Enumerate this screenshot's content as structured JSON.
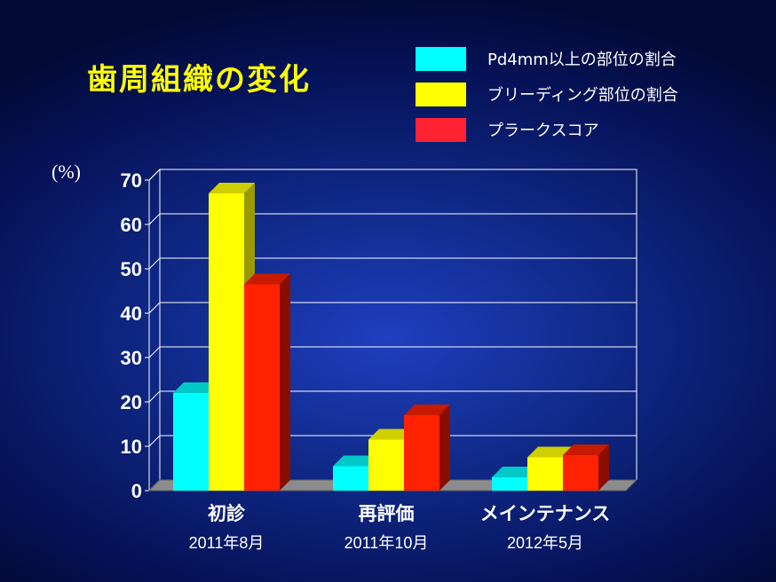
{
  "title": "歯周組織の変化",
  "chart_data": {
    "type": "bar",
    "y_unit": "(%)",
    "ylim": [
      0,
      70
    ],
    "yticks": [
      0,
      10,
      20,
      30,
      40,
      50,
      60,
      70
    ],
    "categories": [
      "初診",
      "再評価",
      "メインテナンス"
    ],
    "category_dates": [
      "2011年8月",
      "2011年10月",
      "2012年5月"
    ],
    "series": [
      {
        "name": "Pd4mm以上の部位の割合",
        "values": [
          22,
          5.5,
          3
        ],
        "color": "#00ffff",
        "side_color": "#009aa8",
        "top_color": "#00c8c8"
      },
      {
        "name": "ブリーディング部位の割合",
        "values": [
          67,
          11.5,
          7.5
        ],
        "color": "#ffff00",
        "side_color": "#9a9a00",
        "top_color": "#cfcf00"
      },
      {
        "name": "プラークスコア",
        "values": [
          46.5,
          17,
          8
        ],
        "color": "#ff2200",
        "side_color": "#8a0e00",
        "top_color": "#c81a00"
      }
    ],
    "legend_placement": "top-right",
    "grid": true,
    "style": "3d-bar"
  }
}
